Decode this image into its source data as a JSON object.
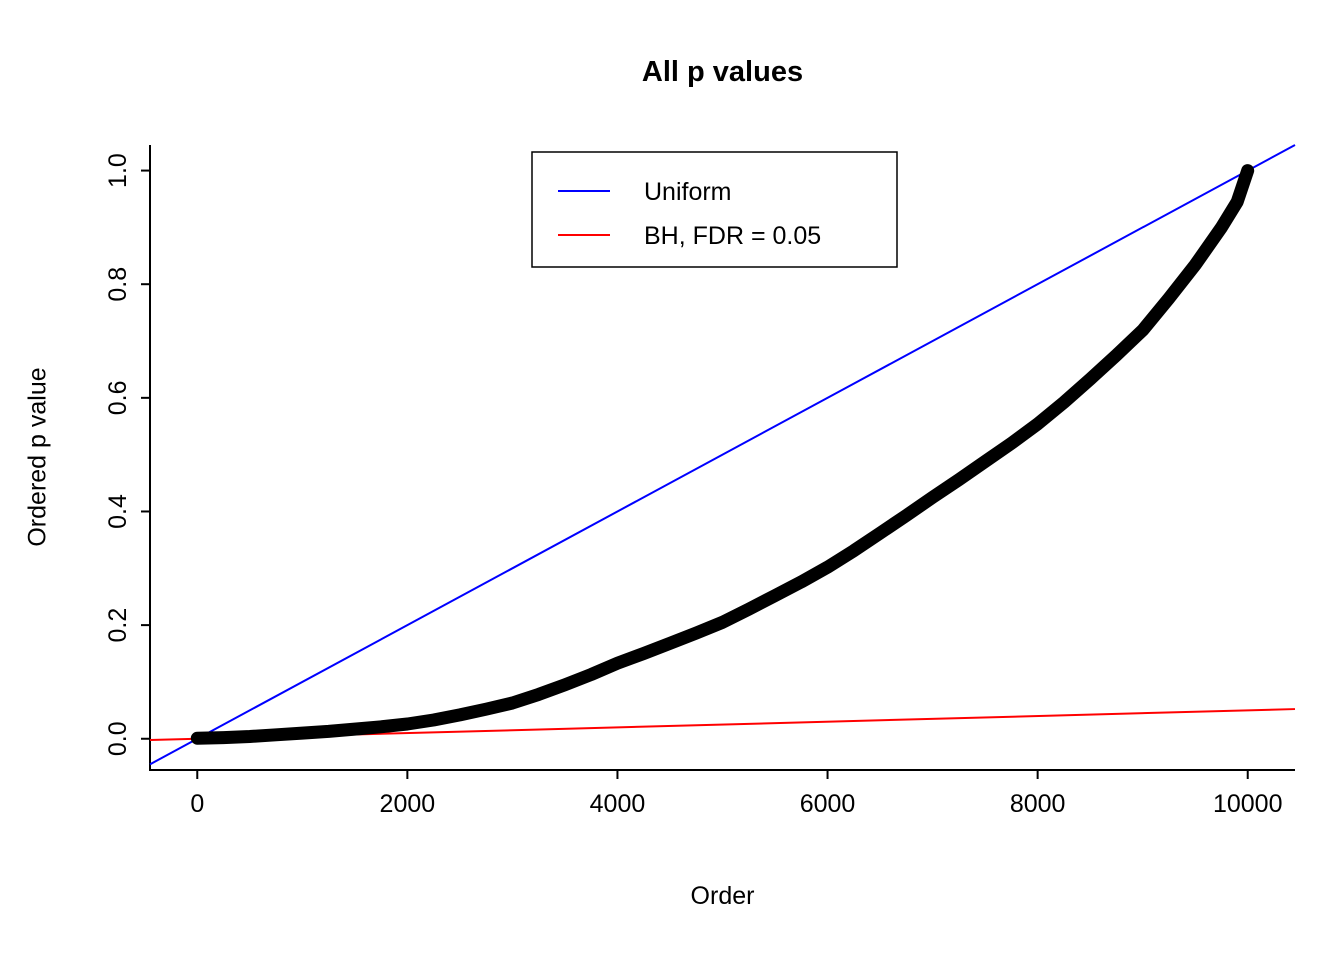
{
  "chart_data": {
    "type": "line",
    "title": "All p values",
    "xlabel": "Order",
    "ylabel": "Ordered p value",
    "xlim": [
      -450,
      10450
    ],
    "ylim": [
      -0.055,
      1.045
    ],
    "x_ticks": [
      0,
      2000,
      4000,
      6000,
      8000,
      10000
    ],
    "x_tick_labels": [
      "0",
      "2000",
      "4000",
      "6000",
      "8000",
      "10000"
    ],
    "y_ticks": [
      0,
      0.2,
      0.4,
      0.6,
      0.8,
      1
    ],
    "y_tick_labels": [
      "0.0",
      "0.2",
      "0.4",
      "0.6",
      "0.8",
      "1.0"
    ],
    "grid": false,
    "axis_color": "#000000",
    "background": "#ffffff",
    "legend": {
      "position": "top-center",
      "entries": [
        {
          "label": "Uniform",
          "color": "#0000ff"
        },
        {
          "label": "BH, FDR = 0.05",
          "color": "#ff0000"
        }
      ]
    },
    "series": [
      {
        "id": "ordered-p-values",
        "name": "Ordered p values",
        "type": "points",
        "color": "#000000",
        "marker_size": 13,
        "points": [
          [
            0,
            0.001
          ],
          [
            250,
            0.002
          ],
          [
            500,
            0.004
          ],
          [
            750,
            0.007
          ],
          [
            1000,
            0.01
          ],
          [
            1250,
            0.013
          ],
          [
            1500,
            0.017
          ],
          [
            1750,
            0.021
          ],
          [
            2000,
            0.026
          ],
          [
            2250,
            0.033
          ],
          [
            2500,
            0.042
          ],
          [
            2750,
            0.052
          ],
          [
            3000,
            0.063
          ],
          [
            3250,
            0.078
          ],
          [
            3500,
            0.095
          ],
          [
            3750,
            0.113
          ],
          [
            4000,
            0.133
          ],
          [
            4250,
            0.15
          ],
          [
            4500,
            0.168
          ],
          [
            4750,
            0.186
          ],
          [
            5000,
            0.205
          ],
          [
            5250,
            0.228
          ],
          [
            5500,
            0.252
          ],
          [
            5750,
            0.276
          ],
          [
            6000,
            0.302
          ],
          [
            6250,
            0.331
          ],
          [
            6500,
            0.362
          ],
          [
            6750,
            0.393
          ],
          [
            7000,
            0.425
          ],
          [
            7250,
            0.456
          ],
          [
            7500,
            0.488
          ],
          [
            7750,
            0.52
          ],
          [
            8000,
            0.554
          ],
          [
            8250,
            0.592
          ],
          [
            8500,
            0.633
          ],
          [
            8750,
            0.675
          ],
          [
            9000,
            0.719
          ],
          [
            9250,
            0.775
          ],
          [
            9500,
            0.834
          ],
          [
            9750,
            0.9
          ],
          [
            9900,
            0.945
          ],
          [
            10000,
            1.0
          ]
        ]
      },
      {
        "id": "uniform",
        "name": "Uniform",
        "type": "line",
        "color": "#0000ff",
        "slope": 0.0001,
        "intercept": 0
      },
      {
        "id": "bh-fdr",
        "name": "BH, FDR = 0.05",
        "type": "line",
        "color": "#ff0000",
        "slope": 5e-06,
        "intercept": 0
      }
    ]
  }
}
